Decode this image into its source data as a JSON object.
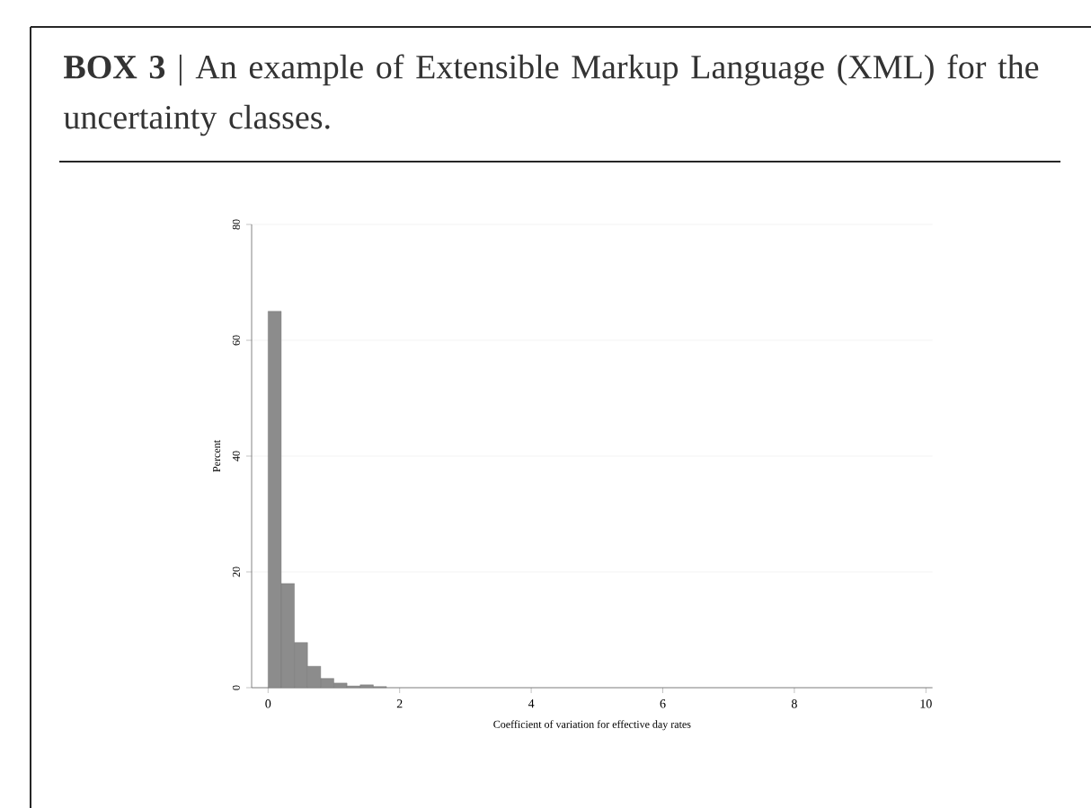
{
  "chart_data": {
    "type": "histogram",
    "title": "**BOX 3**   |   An example of Extensible Markup Language (XML) for the uncertainty classes.",
    "xlabel": "Coefficient of variation for effective day rates",
    "ylabel": "Percent",
    "bins": [
      0,
      0.2,
      0.4,
      0.6,
      0.8,
      1.0,
      1.2,
      1.4,
      1.6,
      1.8
    ],
    "values": [
      65,
      18,
      7.8,
      3.7,
      1.6,
      0.8,
      0.3,
      0.5,
      0.2
    ],
    "color": "#8c8c8c",
    "xlim": [
      -0.25,
      10.1
    ],
    "ylim": [
      0,
      80
    ],
    "xticks": [
      0,
      2,
      4,
      6,
      8,
      10
    ],
    "yticks": [
      0,
      20,
      40,
      60,
      80
    ],
    "grid": "y"
  }
}
